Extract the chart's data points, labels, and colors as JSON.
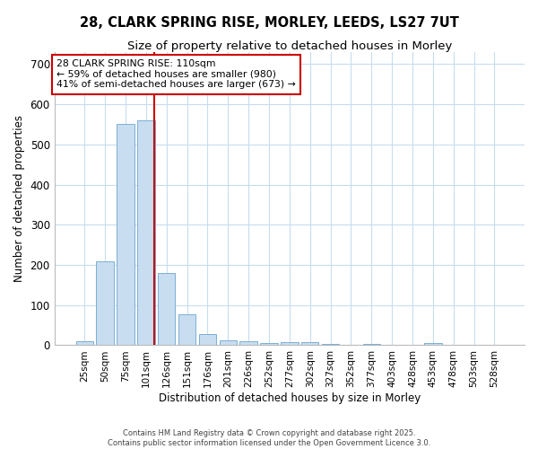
{
  "title_line1": "28, CLARK SPRING RISE, MORLEY, LEEDS, LS27 7UT",
  "title_line2": "Size of property relative to detached houses in Morley",
  "xlabel": "Distribution of detached houses by size in Morley",
  "ylabel": "Number of detached properties",
  "bar_labels": [
    "25sqm",
    "50sqm",
    "75sqm",
    "101sqm",
    "126sqm",
    "151sqm",
    "176sqm",
    "201sqm",
    "226sqm",
    "252sqm",
    "277sqm",
    "302sqm",
    "327sqm",
    "352sqm",
    "377sqm",
    "403sqm",
    "428sqm",
    "453sqm",
    "478sqm",
    "503sqm",
    "528sqm"
  ],
  "bar_values": [
    10,
    210,
    550,
    560,
    180,
    78,
    28,
    12,
    10,
    5,
    8,
    8,
    3,
    0,
    3,
    0,
    0,
    5,
    0,
    0,
    0
  ],
  "bar_color": "#c8ddf0",
  "bar_edge_color": "#7bafd4",
  "background_color": "#ffffff",
  "grid_color": "#c8ddf0",
  "red_line_x": 3.42,
  "annotation_text": "28 CLARK SPRING RISE: 110sqm\n← 59% of detached houses are smaller (980)\n41% of semi-detached houses are larger (673) →",
  "annotation_box_color": "#ffffff",
  "annotation_box_edge": "#cc0000",
  "ylim": [
    0,
    730
  ],
  "yticks": [
    0,
    100,
    200,
    300,
    400,
    500,
    600,
    700
  ],
  "footer_line1": "Contains HM Land Registry data © Crown copyright and database right 2025.",
  "footer_line2": "Contains public sector information licensed under the Open Government Licence 3.0."
}
